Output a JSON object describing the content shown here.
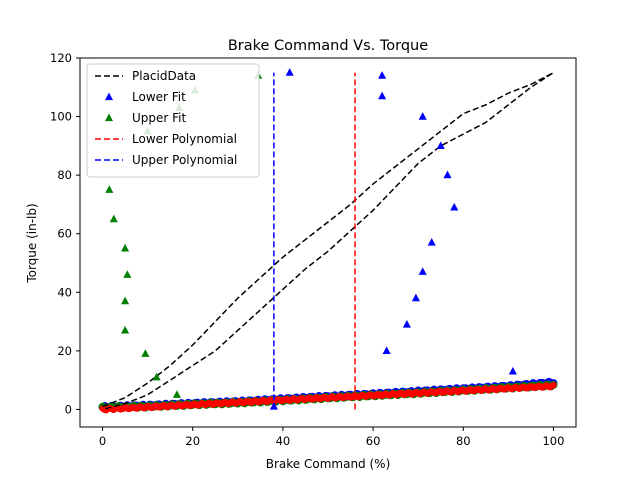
{
  "chart_data": {
    "type": "scatter",
    "title": "Brake Command Vs. Torque",
    "xlabel": "Brake Command (%)",
    "ylabel": "Torque (in-lb)",
    "xlim": [
      -5,
      105
    ],
    "ylim": [
      -6,
      120
    ],
    "xticks": [
      0,
      20,
      40,
      60,
      80,
      100
    ],
    "yticks": [
      0,
      20,
      40,
      60,
      80,
      100,
      120
    ],
    "grid": false,
    "legend_position": "top-left",
    "series": [
      {
        "name": "PlacidData",
        "kind": "line",
        "style": "dashed",
        "color": "#000000",
        "x": [
          0,
          5,
          10,
          15,
          20,
          25,
          30,
          35,
          40,
          45,
          50,
          55,
          60,
          65,
          70,
          75,
          80,
          85,
          90,
          95,
          100,
          95,
          90,
          85,
          80,
          75,
          70,
          65,
          60,
          55,
          50,
          45,
          40,
          35,
          30,
          25,
          20,
          15,
          10,
          5,
          0
        ],
        "y": [
          1,
          4,
          9,
          15,
          22,
          30,
          38,
          45,
          52,
          58,
          64,
          70,
          77,
          83,
          89,
          95,
          101,
          104,
          108,
          111,
          115,
          110,
          104,
          98,
          94,
          90,
          84,
          76,
          68,
          61,
          54,
          48,
          41,
          34,
          27,
          20,
          15,
          10,
          5,
          2,
          0
        ]
      },
      {
        "name": "Lower Fit",
        "kind": "scatter",
        "marker": "triangle",
        "color": "#0000ff",
        "x": [
          38,
          41.5,
          62,
          62,
          63,
          67.5,
          69.5,
          71,
          71,
          73,
          75,
          76.5,
          78,
          91
        ],
        "y": [
          1,
          115,
          107,
          114,
          20,
          29,
          38,
          47,
          100,
          57,
          90,
          80,
          69,
          13
        ]
      },
      {
        "name": "Upper Fit",
        "kind": "scatter",
        "marker": "triangle",
        "color": "#008000",
        "x": [
          1.5,
          2.5,
          5,
          5,
          5.5,
          5,
          9.5,
          10,
          12,
          16.5,
          17,
          20.5,
          34.5
        ],
        "y": [
          75,
          65,
          55,
          37,
          46,
          27,
          19,
          95,
          11,
          5,
          103,
          109,
          114
        ]
      },
      {
        "name": "Lower Polynomial",
        "kind": "line",
        "style": "dashed",
        "color": "#ff0000",
        "x": [
          56,
          56
        ],
        "y": [
          0,
          115
        ]
      },
      {
        "name": "Upper Polynomial",
        "kind": "line",
        "style": "dashed",
        "color": "#0000ff",
        "x": [
          38,
          38
        ],
        "y": [
          0,
          115
        ]
      }
    ],
    "background_points": [
      {
        "color": "#0000ff",
        "x": [
          0,
          10,
          20,
          30,
          40,
          50,
          60,
          70,
          80,
          90,
          100
        ],
        "y": [
          0.8,
          1.3,
          2,
          2.6,
          3.5,
          4.4,
          5.2,
          6.1,
          7,
          7.9,
          9.2
        ]
      },
      {
        "color": "#008000",
        "x": [
          0,
          10,
          20,
          30,
          40,
          50,
          60,
          70,
          80,
          90,
          100
        ],
        "y": [
          0.6,
          1,
          1.7,
          2.3,
          3.1,
          4,
          4.8,
          5.6,
          6.5,
          7.4,
          8.3
        ]
      },
      {
        "color": "#ff0000",
        "x": [
          0,
          100
        ],
        "y": [
          0,
          8
        ]
      }
    ]
  }
}
